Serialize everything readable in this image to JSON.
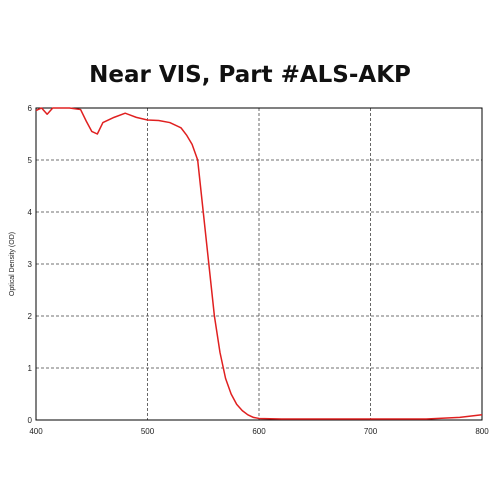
{
  "chart_data": {
    "type": "line",
    "title": "Near VIS, Part #ALS-AKP",
    "xlabel": "",
    "ylabel": "Optical Density (OD)",
    "xlim": [
      400,
      800
    ],
    "ylim": [
      0,
      6
    ],
    "xticks": [
      400,
      500,
      600,
      700,
      800
    ],
    "yticks": [
      0,
      1,
      2,
      3,
      4,
      5,
      6
    ],
    "grid": "dashed",
    "series_color": "#e02020",
    "series": [
      {
        "x": [
          400,
          405,
          410,
          415,
          420,
          430,
          440,
          445,
          450,
          455,
          460,
          470,
          480,
          490,
          500,
          510,
          520,
          530,
          535,
          540,
          545,
          550,
          555,
          560,
          565,
          570,
          575,
          580,
          585,
          590,
          595,
          600,
          620,
          650,
          700,
          750,
          780,
          800
        ],
        "y": [
          5.95,
          6.0,
          5.88,
          6.0,
          6.0,
          6.0,
          5.97,
          5.75,
          5.55,
          5.5,
          5.72,
          5.82,
          5.9,
          5.82,
          5.77,
          5.76,
          5.72,
          5.62,
          5.48,
          5.3,
          5.0,
          4.0,
          3.0,
          2.0,
          1.3,
          0.8,
          0.5,
          0.3,
          0.18,
          0.1,
          0.05,
          0.03,
          0.02,
          0.02,
          0.02,
          0.02,
          0.05,
          0.1
        ]
      }
    ]
  }
}
